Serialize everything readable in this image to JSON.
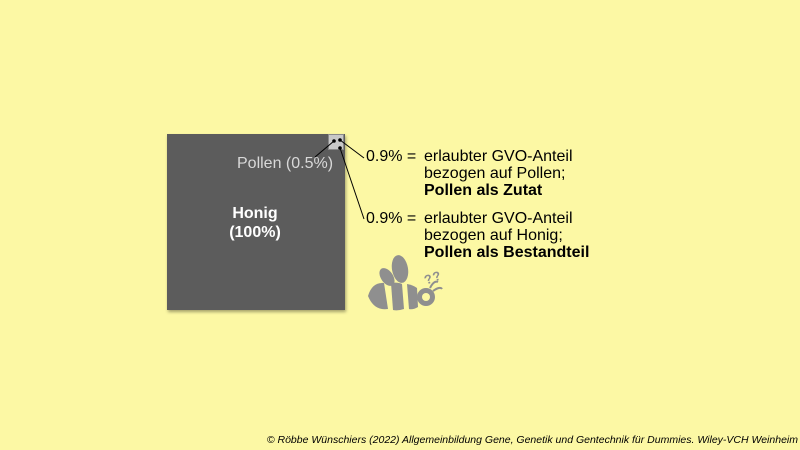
{
  "honey": {
    "label_line1": "Honig",
    "label_line2": "(100%)",
    "color": "#5c5c5c"
  },
  "pollen": {
    "label": "Pollen (0.5%)",
    "color": "#c8c8c8"
  },
  "notes": [
    {
      "percent": "0.9% =",
      "line1": "erlaubter GVO-Anteil",
      "line2": "bezogen auf Pollen;",
      "line3": "Pollen als Zutat"
    },
    {
      "percent": "0.9% =",
      "line1": "erlaubter GVO-Anteil",
      "line2": "bezogen auf Honig;",
      "line3": "Pollen als Bestandteil"
    }
  ],
  "bee": {
    "icon": "bee-icon",
    "question_marks": "??",
    "color": "#8f8f8f"
  },
  "copyright": "© Röbbe Wünschiers (2022) Allgemeinbildung Gene, Genetik und Gentechnik für Dummies. Wiley-VCH Weinheim",
  "background_color": "#fcf8a4"
}
